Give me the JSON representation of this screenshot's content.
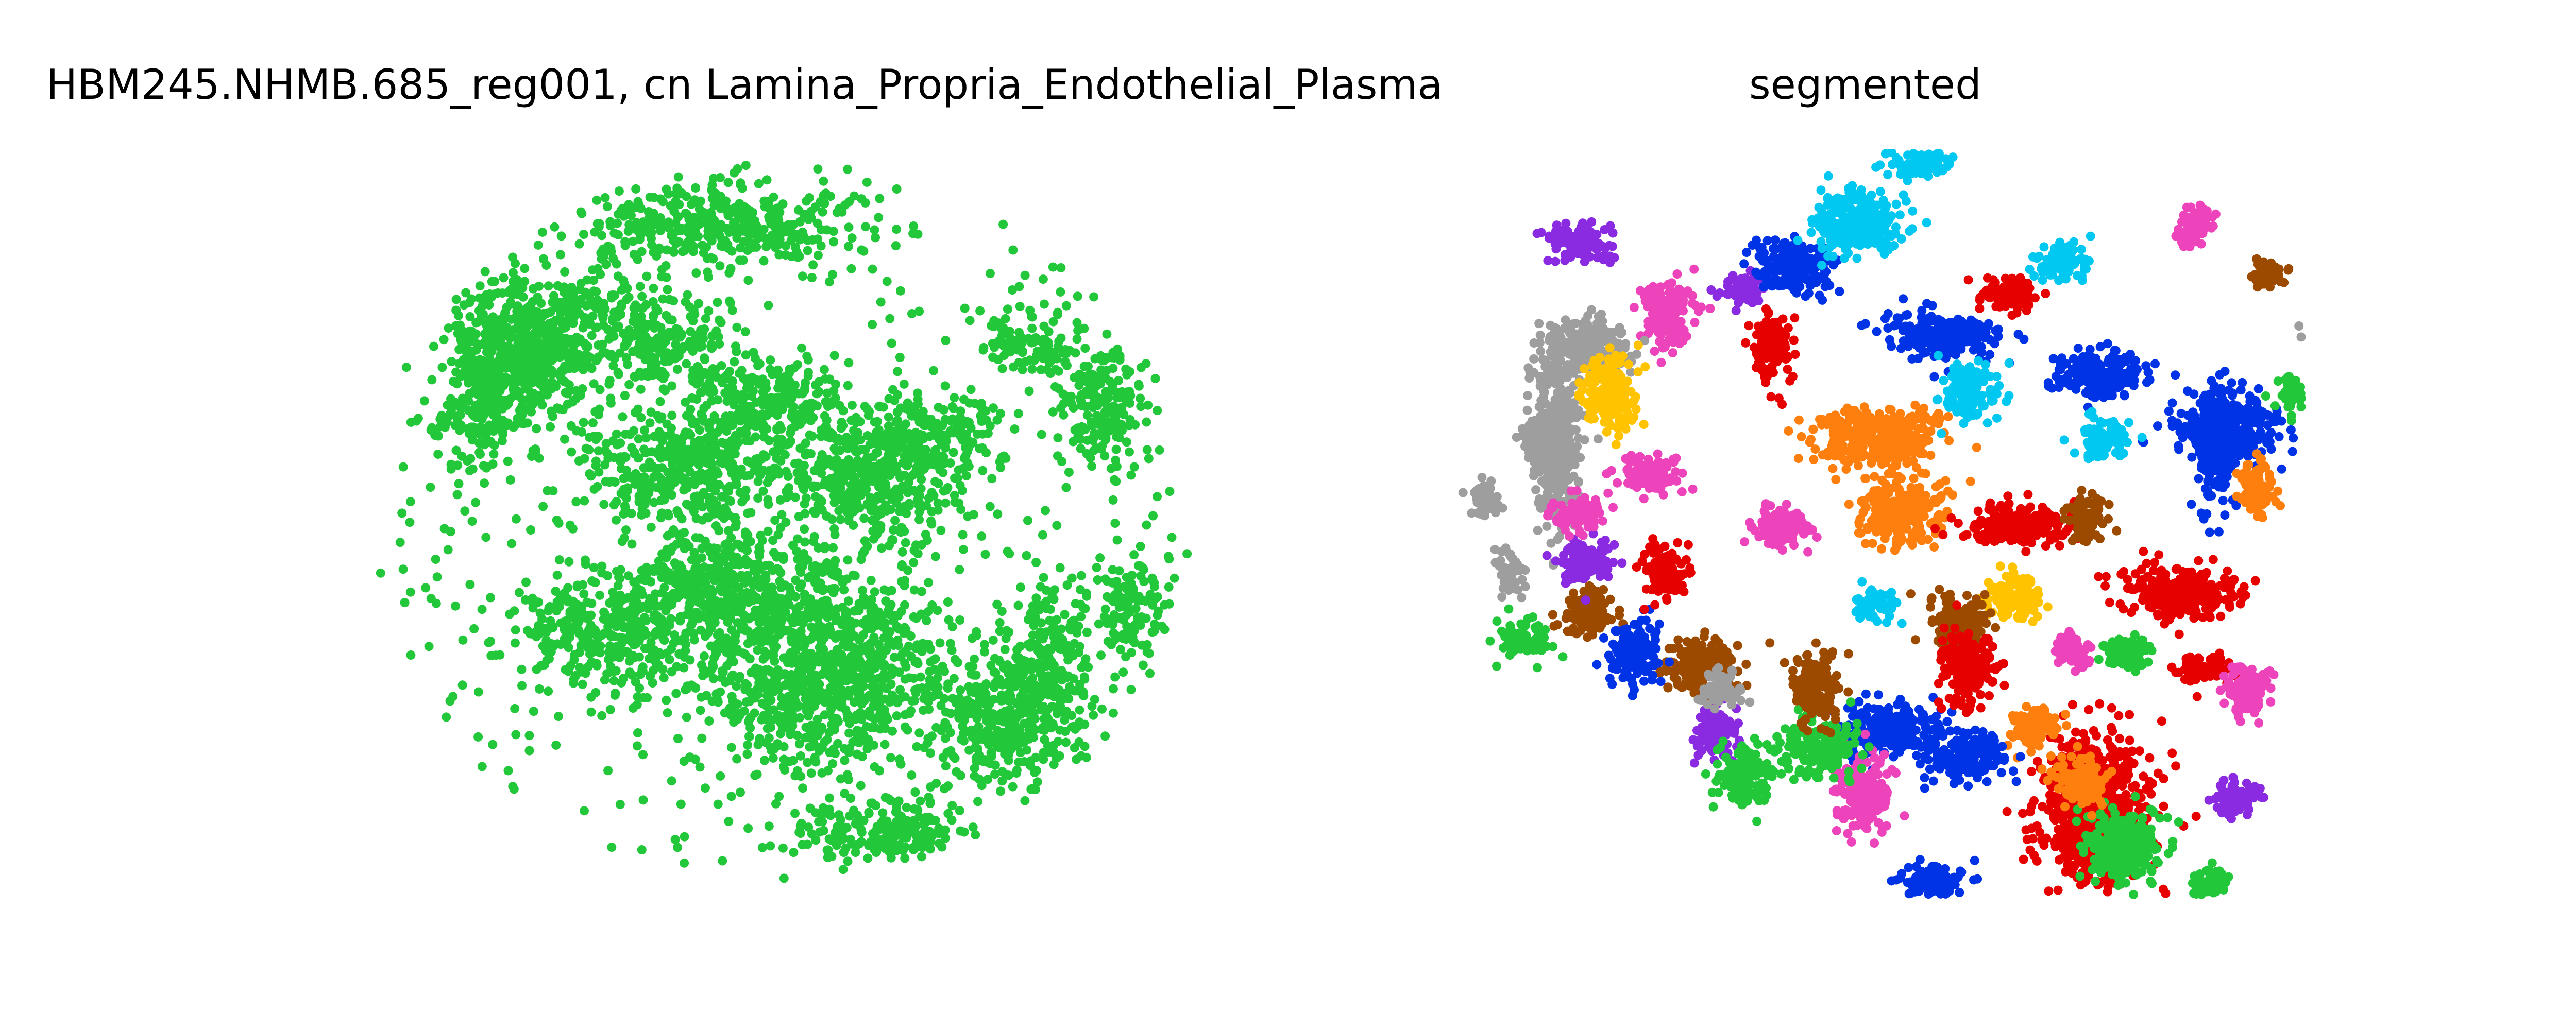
{
  "chart_data": [
    {
      "type": "scatter",
      "title": "HBM245.NHMB.685_reg001, cn Lamina_Propria_Endothelial_Plasma",
      "axes_visible": false,
      "series": [
        {
          "color": "#22c83a"
        }
      ]
    },
    {
      "type": "scatter",
      "title": "segmented",
      "axes_visible": false,
      "cluster_colors": [
        "#0033e6",
        "#22c83a",
        "#e60000",
        "#ff7f0e",
        "#8a2be2",
        "#9c4a00",
        "#ee44bb",
        "#9e9e9e",
        "#ffc300",
        "#00c8f0"
      ]
    }
  ]
}
